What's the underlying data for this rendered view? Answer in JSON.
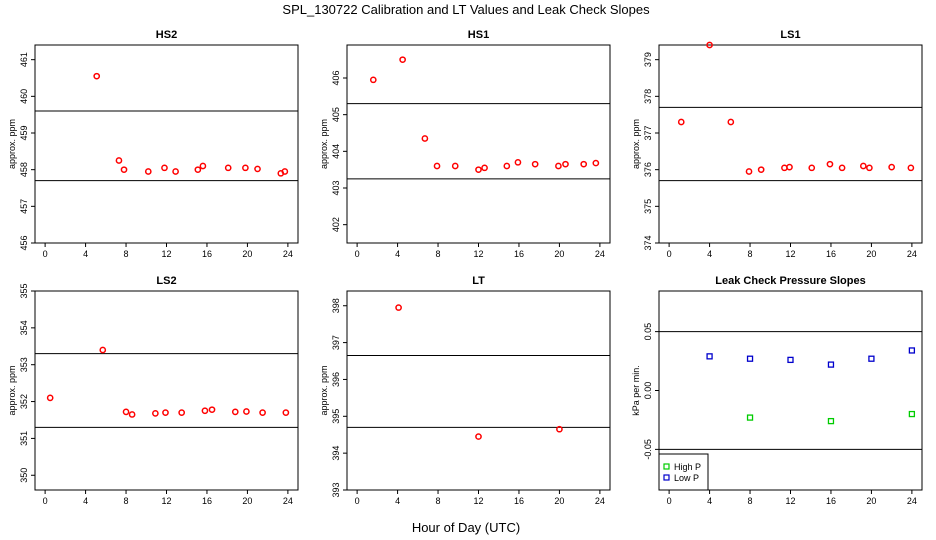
{
  "figure": {
    "title": "SPL_130722  Calibration and LT Values and Leak Check Slopes",
    "xlabel": "Hour of Day (UTC)"
  },
  "chart_data": [
    {
      "type": "scatter",
      "title": "HS2",
      "ylabel": "approx. ppm",
      "xlim": [
        -1,
        25
      ],
      "ylim": [
        456,
        461.4
      ],
      "xticks": [
        0,
        4,
        8,
        12,
        16,
        20,
        24
      ],
      "yticks": [
        456,
        457,
        458,
        459,
        460,
        461
      ],
      "hlines": [
        459.6,
        457.7
      ],
      "series": [
        {
          "color": "#ff0000",
          "marker": "circle",
          "x": [
            5.1,
            7.3,
            7.8,
            10.2,
            11.8,
            12.9,
            15.1,
            15.6,
            18.1,
            19.8,
            21.0,
            23.3,
            23.7
          ],
          "y": [
            460.55,
            458.25,
            458.0,
            457.95,
            458.05,
            457.95,
            458.0,
            458.1,
            458.05,
            458.05,
            458.02,
            457.9,
            457.95
          ]
        }
      ]
    },
    {
      "type": "scatter",
      "title": "HS1",
      "ylabel": "approx. ppm",
      "xlim": [
        -1,
        25
      ],
      "ylim": [
        401.5,
        406.9
      ],
      "xticks": [
        0,
        4,
        8,
        12,
        16,
        20,
        24
      ],
      "yticks": [
        402,
        403,
        404,
        405,
        406
      ],
      "hlines": [
        405.3,
        403.25
      ],
      "series": [
        {
          "color": "#ff0000",
          "marker": "circle",
          "x": [
            1.6,
            4.5,
            6.7,
            7.9,
            9.7,
            12.0,
            12.6,
            14.8,
            15.9,
            17.6,
            19.9,
            20.6,
            22.4,
            23.6
          ],
          "y": [
            405.95,
            406.5,
            404.35,
            403.6,
            403.6,
            403.5,
            403.55,
            403.6,
            403.7,
            403.65,
            403.6,
            403.65,
            403.65,
            403.68
          ]
        }
      ]
    },
    {
      "type": "scatter",
      "title": "LS1",
      "ylabel": "approx. ppm",
      "xlim": [
        -1,
        25
      ],
      "ylim": [
        374,
        379.4
      ],
      "xticks": [
        0,
        4,
        8,
        12,
        16,
        20,
        24
      ],
      "yticks": [
        374,
        375,
        376,
        377,
        378,
        379
      ],
      "hlines": [
        377.7,
        375.7
      ],
      "series": [
        {
          "color": "#ff0000",
          "marker": "circle",
          "x": [
            1.2,
            4.0,
            6.1,
            7.9,
            9.1,
            11.4,
            11.9,
            14.1,
            15.9,
            17.1,
            19.2,
            19.8,
            22.0,
            23.9
          ],
          "y": [
            377.3,
            379.4,
            377.3,
            375.95,
            376.0,
            376.05,
            376.07,
            376.05,
            376.15,
            376.05,
            376.1,
            376.05,
            376.07,
            376.05
          ]
        }
      ]
    },
    {
      "type": "scatter",
      "title": "LS2",
      "ylabel": "approx. ppm",
      "xlim": [
        -1,
        25
      ],
      "ylim": [
        349.6,
        355
      ],
      "xticks": [
        0,
        4,
        8,
        12,
        16,
        20,
        24
      ],
      "yticks": [
        350,
        351,
        352,
        353,
        354,
        355
      ],
      "hlines": [
        353.3,
        351.3
      ],
      "series": [
        {
          "color": "#ff0000",
          "marker": "circle",
          "x": [
            0.5,
            5.7,
            8.0,
            8.6,
            10.9,
            11.9,
            13.5,
            15.8,
            16.5,
            18.8,
            19.9,
            21.5,
            23.8
          ],
          "y": [
            352.1,
            353.4,
            351.72,
            351.65,
            351.68,
            351.7,
            351.7,
            351.75,
            351.78,
            351.72,
            351.73,
            351.7,
            351.7
          ]
        }
      ]
    },
    {
      "type": "scatter",
      "title": "LT",
      "ylabel": "approx. ppm",
      "xlim": [
        -1,
        25
      ],
      "ylim": [
        393,
        398.4
      ],
      "xticks": [
        0,
        4,
        8,
        12,
        16,
        20,
        24
      ],
      "yticks": [
        393,
        394,
        395,
        396,
        397,
        398
      ],
      "hlines": [
        396.65,
        394.7
      ],
      "series": [
        {
          "color": "#ff0000",
          "marker": "circle",
          "x": [
            4.1,
            12.0,
            20.0
          ],
          "y": [
            397.95,
            394.45,
            394.65
          ]
        }
      ]
    },
    {
      "type": "scatter",
      "title": "Leak Check Pressure Slopes",
      "ylabel": "kPa per min.",
      "xlim": [
        -1,
        25
      ],
      "ylim": [
        -0.0845,
        0.0845
      ],
      "xticks": [
        0,
        4,
        8,
        12,
        16,
        20,
        24
      ],
      "yticks": [
        -0.05,
        0.0,
        0.05
      ],
      "ytick_labels": [
        "-0.05",
        "0.00",
        "0.05"
      ],
      "hlines": [
        0.05,
        -0.05
      ],
      "legend": {
        "placement": "bottom-left"
      },
      "series": [
        {
          "name": "High P",
          "color": "#00cc00",
          "marker": "square",
          "x": [
            8.0,
            16.0,
            24.0
          ],
          "y": [
            -0.023,
            -0.026,
            -0.02
          ]
        },
        {
          "name": "Low P",
          "color": "#0000cc",
          "marker": "square",
          "x": [
            4.0,
            8.0,
            12.0,
            16.0,
            20.0,
            24.0
          ],
          "y": [
            0.029,
            0.027,
            0.026,
            0.022,
            0.027,
            0.034
          ]
        }
      ]
    }
  ]
}
